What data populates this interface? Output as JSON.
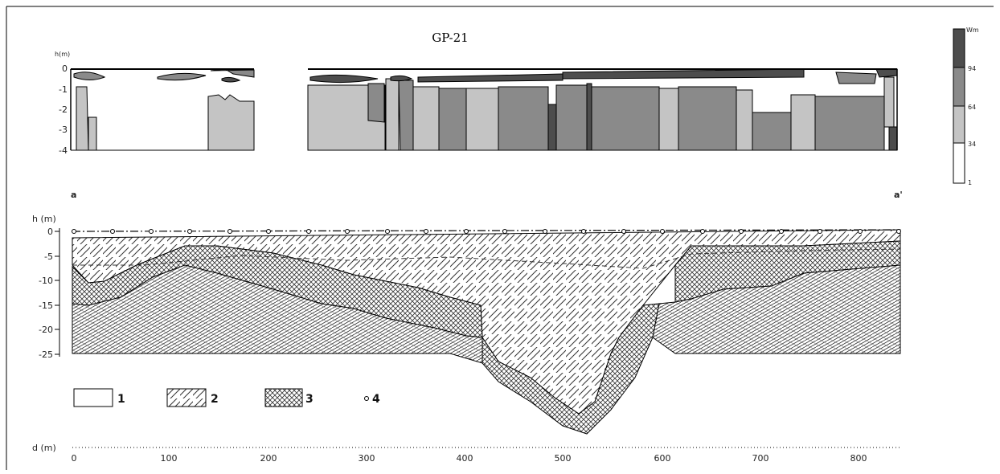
{
  "title": "GP-21",
  "top_profile": {
    "ylabel": "h(m)",
    "y_ticks": [
      "0",
      "-1",
      "-2",
      "-3",
      "-4"
    ]
  },
  "color_scale": {
    "label": "Wm",
    "ticks": [
      "94",
      "64",
      "34",
      "1"
    ],
    "colors": [
      "#4d4d4d",
      "#8a8a8a",
      "#c4c4c4",
      "#ffffff"
    ]
  },
  "section_ends": {
    "left": "a",
    "right": "a'"
  },
  "bottom_profile": {
    "ylabel": "h (m)",
    "y_ticks": [
      "0",
      "-5",
      "-10",
      "-15",
      "-20",
      "-25"
    ],
    "xlabel": "d (m)",
    "x_ticks": [
      "0",
      "100",
      "200",
      "300",
      "400",
      "500",
      "600",
      "700",
      "800"
    ]
  },
  "legend": [
    {
      "key": "1",
      "pattern": "blank"
    },
    {
      "key": "2",
      "pattern": "diagonal-hatch"
    },
    {
      "key": "3",
      "pattern": "cross-hatch"
    },
    {
      "key": "4",
      "pattern": "circle-marker"
    }
  ]
}
